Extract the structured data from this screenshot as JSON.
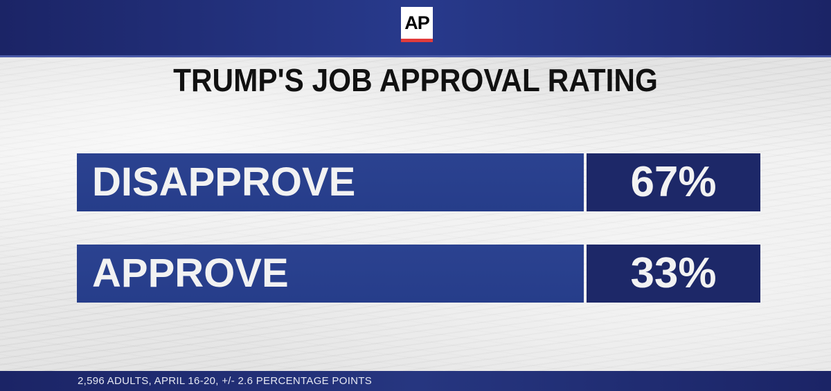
{
  "header": {
    "logo_text": "AP",
    "accent_color": "#e23b3b",
    "band_color": "#1f2b72"
  },
  "chart_data": {
    "type": "bar",
    "title": "TRUMP'S JOB APPROVAL RATING",
    "categories": [
      "DISAPPROVE",
      "APPROVE"
    ],
    "values": [
      67,
      33
    ],
    "value_labels": [
      "67%",
      "33%"
    ],
    "unit": "%",
    "bar_color": "#2b4290",
    "value_cell_color": "#1d2868"
  },
  "footer": {
    "note": "2,596 ADULTS, APRIL 16-20, +/- 2.6 PERCENTAGE POINTS"
  }
}
